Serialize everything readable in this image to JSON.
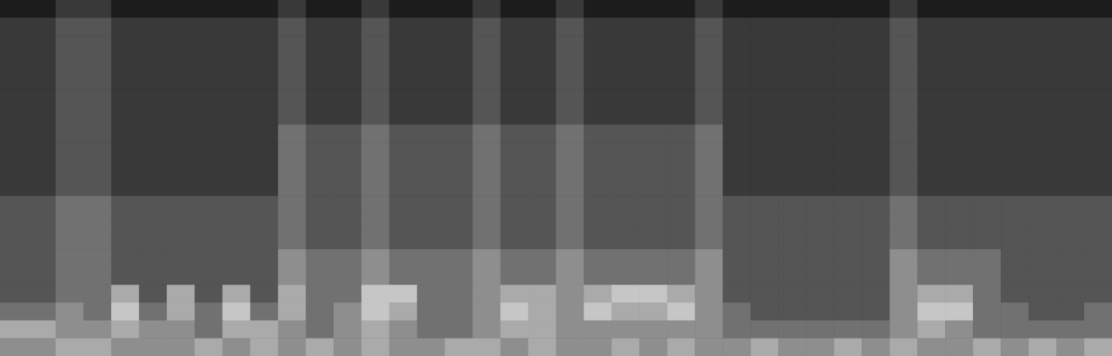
{
  "chart_data": {
    "type": "heatmap",
    "tick_labels": false,
    "zlim": [
      0,
      9
    ],
    "cells": [
      [
        1,
        1,
        2,
        2,
        1,
        1,
        1,
        1,
        1,
        1,
        2,
        1,
        1,
        2,
        1,
        1,
        1,
        2,
        1,
        1,
        2,
        1,
        1,
        1,
        1,
        2,
        1,
        1,
        1,
        1,
        1,
        1,
        2,
        1,
        1,
        1,
        1,
        1,
        1,
        1
      ],
      [
        2,
        2,
        3,
        3,
        2,
        2,
        2,
        2,
        2,
        2,
        3,
        2,
        2,
        3,
        2,
        2,
        2,
        3,
        2,
        2,
        3,
        2,
        2,
        2,
        2,
        3,
        2,
        2,
        2,
        2,
        2,
        2,
        3,
        2,
        2,
        2,
        2,
        2,
        2,
        2
      ],
      [
        2,
        2,
        3,
        3,
        2,
        2,
        2,
        2,
        2,
        2,
        3,
        2,
        2,
        3,
        2,
        2,
        2,
        3,
        2,
        2,
        3,
        2,
        2,
        2,
        2,
        3,
        2,
        2,
        2,
        2,
        2,
        2,
        3,
        2,
        2,
        2,
        2,
        2,
        2,
        2
      ],
      [
        2,
        2,
        3,
        3,
        2,
        2,
        2,
        2,
        2,
        2,
        3,
        2,
        2,
        3,
        2,
        2,
        2,
        3,
        2,
        2,
        3,
        2,
        2,
        2,
        2,
        3,
        2,
        2,
        2,
        2,
        2,
        2,
        3,
        2,
        2,
        2,
        2,
        2,
        2,
        2
      ],
      [
        2,
        2,
        3,
        3,
        2,
        2,
        2,
        2,
        2,
        2,
        3,
        2,
        2,
        3,
        2,
        2,
        2,
        3,
        2,
        2,
        3,
        2,
        2,
        2,
        2,
        3,
        2,
        2,
        2,
        2,
        2,
        2,
        3,
        2,
        2,
        2,
        2,
        2,
        2,
        2
      ],
      [
        2,
        2,
        3,
        3,
        2,
        2,
        2,
        2,
        2,
        2,
        3,
        2,
        2,
        3,
        2,
        2,
        2,
        3,
        2,
        2,
        3,
        2,
        2,
        2,
        2,
        3,
        2,
        2,
        2,
        2,
        2,
        2,
        3,
        2,
        2,
        2,
        2,
        2,
        2,
        2
      ],
      [
        2,
        2,
        3,
        3,
        2,
        2,
        2,
        2,
        2,
        2,
        3,
        2,
        2,
        3,
        2,
        2,
        2,
        3,
        2,
        2,
        3,
        2,
        2,
        2,
        2,
        3,
        2,
        2,
        2,
        2,
        2,
        2,
        3,
        2,
        2,
        2,
        2,
        2,
        2,
        2
      ],
      [
        2,
        2,
        3,
        3,
        2,
        2,
        2,
        2,
        2,
        2,
        4,
        3,
        3,
        4,
        3,
        3,
        3,
        4,
        3,
        3,
        4,
        3,
        3,
        3,
        3,
        4,
        2,
        2,
        2,
        2,
        2,
        2,
        3,
        2,
        2,
        2,
        2,
        2,
        2,
        2
      ],
      [
        2,
        2,
        3,
        3,
        2,
        2,
        2,
        2,
        2,
        2,
        4,
        3,
        3,
        4,
        3,
        3,
        3,
        4,
        3,
        3,
        4,
        3,
        3,
        3,
        3,
        4,
        2,
        2,
        2,
        2,
        2,
        2,
        3,
        2,
        2,
        2,
        2,
        2,
        2,
        2
      ],
      [
        2,
        2,
        3,
        3,
        2,
        2,
        2,
        2,
        2,
        2,
        4,
        3,
        3,
        4,
        3,
        3,
        3,
        4,
        3,
        3,
        4,
        3,
        3,
        3,
        3,
        4,
        2,
        2,
        2,
        2,
        2,
        2,
        3,
        2,
        2,
        2,
        2,
        2,
        2,
        2
      ],
      [
        2,
        2,
        3,
        3,
        2,
        2,
        2,
        2,
        2,
        2,
        4,
        3,
        3,
        4,
        3,
        3,
        3,
        4,
        3,
        3,
        4,
        3,
        3,
        3,
        3,
        4,
        2,
        2,
        2,
        2,
        2,
        2,
        3,
        2,
        2,
        2,
        2,
        2,
        2,
        2
      ],
      [
        3,
        3,
        4,
        4,
        3,
        3,
        3,
        3,
        3,
        3,
        4,
        3,
        3,
        4,
        3,
        3,
        3,
        4,
        3,
        3,
        4,
        3,
        3,
        3,
        3,
        4,
        3,
        3,
        3,
        3,
        3,
        3,
        4,
        3,
        3,
        3,
        3,
        3,
        3,
        3
      ],
      [
        3,
        3,
        4,
        4,
        3,
        3,
        3,
        3,
        3,
        3,
        4,
        3,
        3,
        4,
        3,
        3,
        3,
        4,
        3,
        3,
        4,
        3,
        3,
        3,
        3,
        4,
        3,
        3,
        3,
        3,
        3,
        3,
        4,
        3,
        3,
        3,
        3,
        3,
        3,
        3
      ],
      [
        3,
        3,
        4,
        4,
        3,
        3,
        3,
        3,
        3,
        3,
        4,
        3,
        3,
        4,
        3,
        3,
        3,
        4,
        3,
        3,
        4,
        3,
        3,
        3,
        3,
        4,
        3,
        3,
        3,
        3,
        3,
        3,
        4,
        3,
        3,
        3,
        3,
        3,
        3,
        3
      ],
      [
        3,
        3,
        4,
        4,
        3,
        3,
        3,
        3,
        3,
        3,
        5,
        4,
        4,
        5,
        4,
        4,
        4,
        5,
        4,
        4,
        5,
        4,
        4,
        4,
        4,
        5,
        3,
        3,
        3,
        3,
        3,
        3,
        5,
        4,
        4,
        4,
        3,
        3,
        3,
        3
      ],
      [
        3,
        3,
        4,
        4,
        3,
        3,
        3,
        3,
        3,
        3,
        5,
        4,
        4,
        5,
        4,
        4,
        4,
        5,
        4,
        4,
        5,
        4,
        4,
        4,
        4,
        5,
        3,
        3,
        3,
        3,
        3,
        3,
        5,
        4,
        4,
        4,
        3,
        3,
        3,
        3
      ],
      [
        3,
        3,
        4,
        4,
        6,
        3,
        6,
        3,
        6,
        3,
        6,
        4,
        4,
        7,
        7,
        4,
        4,
        5,
        6,
        6,
        5,
        6,
        7,
        7,
        6,
        5,
        3,
        3,
        3,
        3,
        3,
        3,
        5,
        6,
        6,
        4,
        3,
        3,
        3,
        3
      ],
      [
        4,
        4,
        5,
        4,
        7,
        4,
        6,
        4,
        7,
        4,
        6,
        4,
        5,
        7,
        6,
        4,
        4,
        5,
        7,
        6,
        5,
        7,
        6,
        6,
        7,
        5,
        4,
        3,
        3,
        3,
        3,
        3,
        5,
        7,
        7,
        4,
        4,
        3,
        3,
        4
      ],
      [
        6,
        6,
        5,
        5,
        6,
        5,
        5,
        4,
        6,
        6,
        5,
        4,
        5,
        6,
        5,
        4,
        4,
        5,
        6,
        6,
        5,
        5,
        5,
        5,
        5,
        5,
        4,
        4,
        4,
        4,
        4,
        4,
        5,
        6,
        5,
        4,
        4,
        4,
        4,
        4
      ],
      [
        5,
        5,
        6,
        6,
        5,
        5,
        5,
        6,
        5,
        6,
        5,
        6,
        5,
        6,
        5,
        5,
        6,
        6,
        5,
        6,
        5,
        5,
        6,
        5,
        6,
        5,
        5,
        6,
        5,
        5,
        6,
        5,
        6,
        5,
        5,
        6,
        5,
        6,
        5,
        6
      ]
    ]
  }
}
